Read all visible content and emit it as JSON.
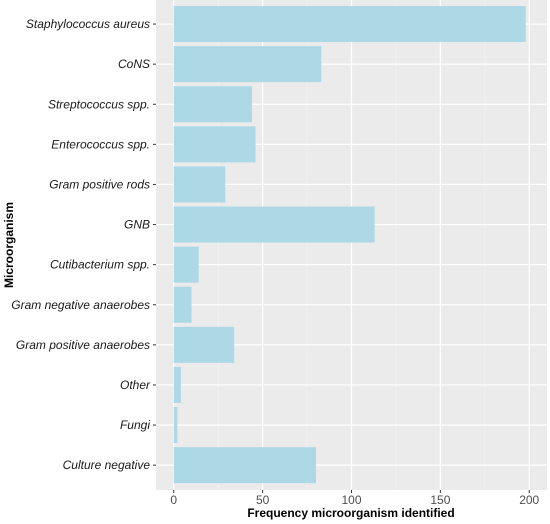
{
  "chart_data": {
    "type": "bar",
    "orientation": "horizontal",
    "categories": [
      "Staphylococcus aureus",
      "CoNS",
      "Streptococcus spp.",
      "Enterococcus spp.",
      "Gram positive rods",
      "GNB",
      "Cutibacterium spp.",
      "Gram negative anaerobes",
      "Gram positive anaerobes",
      "Other",
      "Fungi",
      "Culture negative"
    ],
    "values": [
      198,
      83,
      44,
      46,
      29,
      113,
      14,
      10,
      34,
      4,
      2,
      80
    ],
    "xlabel": "Frequency microorganism identified",
    "ylabel": "Microorganism",
    "xlim": [
      -10,
      210
    ],
    "xticks": [
      0,
      50,
      100,
      150,
      200
    ],
    "grid": true,
    "legend": "none",
    "colors": {
      "bar": "#add8e6",
      "panel": "#ebebeb",
      "grid": "#ffffff"
    }
  }
}
